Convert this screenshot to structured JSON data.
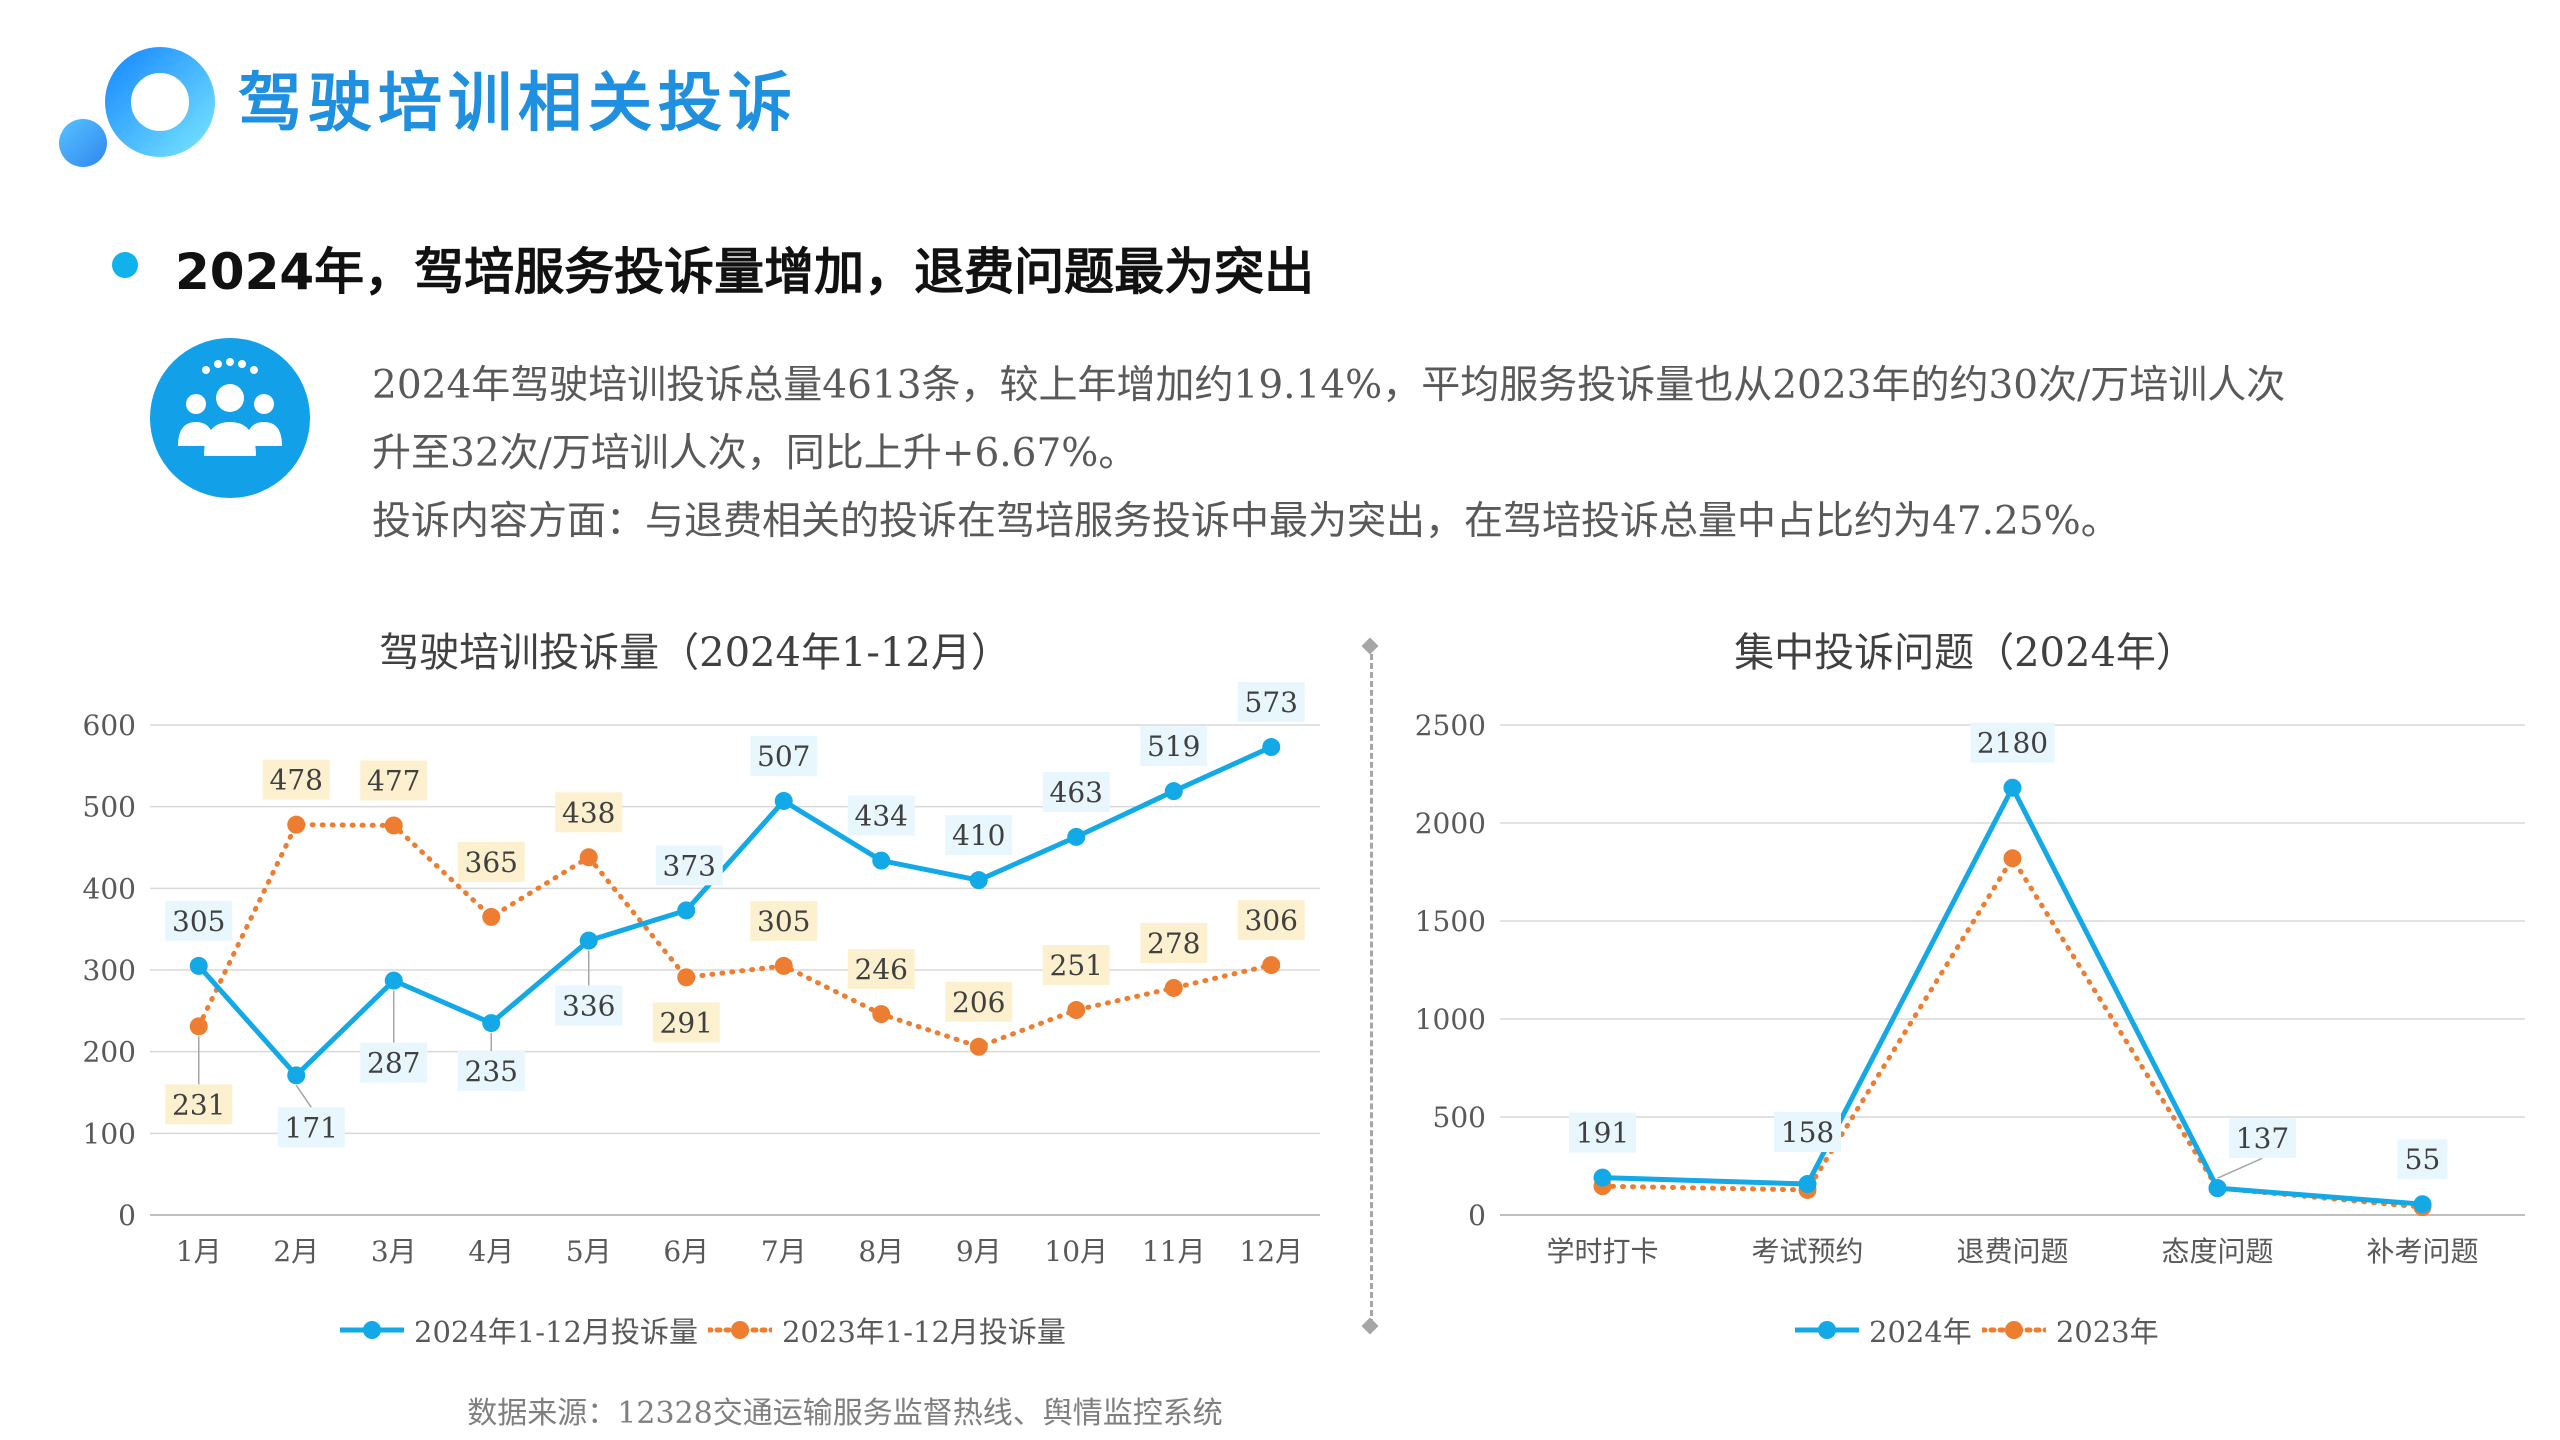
{
  "header": {
    "title": "驾驶培训相关投诉",
    "headline": "2024年，驾培服务投诉量增加，退费问题最为突出"
  },
  "description": [
    "2024年驾驶培训投诉总量4613条，较上年增加约19.14%，平均服务投诉量也从2023年的约30次/万培训人次",
    "升至32次/万培训人次，同比上升+6.67%。",
    "投诉内容方面：与退费相关的投诉在驾培服务投诉中最为突出，在驾培投诉总量中占比约为47.25%。"
  ],
  "colors": {
    "series_2024": "#12a9e6",
    "series_2023": "#ed7d31",
    "label_bg_2024": "#e8f7fd",
    "label_bg_2023": "#fdf0cf",
    "title_blue": "#1f8fe0"
  },
  "icons": [
    "logo-rings-icon",
    "people-group-icon"
  ],
  "chart_data": [
    {
      "type": "line",
      "title": "驾驶培训投诉量（2024年1-12月）",
      "categories": [
        "1月",
        "2月",
        "3月",
        "4月",
        "5月",
        "6月",
        "7月",
        "8月",
        "9月",
        "10月",
        "11月",
        "12月"
      ],
      "ylim": [
        0,
        600
      ],
      "yticks": [
        0,
        100,
        200,
        300,
        400,
        500,
        600
      ],
      "grid": true,
      "legend": "bottom",
      "series": [
        {
          "name": "2024年1-12月投诉量",
          "style": "solid",
          "values": [
            305,
            171,
            287,
            235,
            336,
            373,
            507,
            434,
            410,
            463,
            519,
            573
          ]
        },
        {
          "name": "2023年1-12月投诉量",
          "style": "dotted",
          "values": [
            231,
            478,
            477,
            365,
            438,
            291,
            305,
            246,
            206,
            251,
            278,
            306
          ]
        }
      ]
    },
    {
      "type": "line",
      "title": "集中投诉问题（2024年）",
      "categories": [
        "学时打卡",
        "考试预约",
        "退费问题",
        "态度问题",
        "补考问题"
      ],
      "ylim": [
        0,
        2500
      ],
      "yticks": [
        0,
        500,
        1000,
        1500,
        2000,
        2500
      ],
      "grid": true,
      "legend": "bottom",
      "series": [
        {
          "name": "2024年",
          "style": "solid",
          "values": [
            191,
            158,
            2180,
            137,
            55
          ]
        },
        {
          "name": "2023年",
          "style": "dotted",
          "values": [
            147,
            128,
            1820,
            137,
            40
          ]
        }
      ]
    }
  ],
  "footer": {
    "source": "数据来源：12328交通运输服务监督热线、舆情监控系统"
  }
}
